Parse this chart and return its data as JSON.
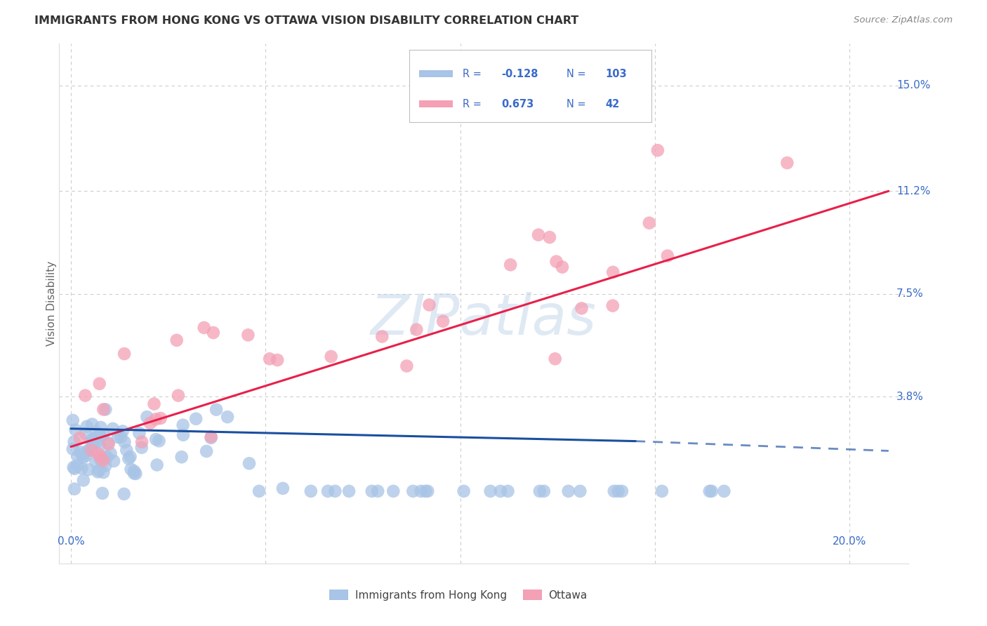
{
  "title": "IMMIGRANTS FROM HONG KONG VS OTTAWA VISION DISABILITY CORRELATION CHART",
  "source": "Source: ZipAtlas.com",
  "ylabel": "Vision Disability",
  "ytick_labels": [
    "15.0%",
    "11.2%",
    "7.5%",
    "3.8%"
  ],
  "ytick_values": [
    0.15,
    0.112,
    0.075,
    0.038
  ],
  "xtick_labels": [
    "0.0%",
    "20.0%"
  ],
  "xtick_values": [
    0.0,
    0.2
  ],
  "xlim": [
    -0.003,
    0.215
  ],
  "ylim": [
    -0.022,
    0.165
  ],
  "blue_R": "-0.128",
  "blue_N": "103",
  "pink_R": "0.673",
  "pink_N": "42",
  "blue_color": "#a8c4e6",
  "pink_color": "#f4a0b5",
  "blue_line_color": "#1a4fa0",
  "pink_line_color": "#e8204a",
  "legend_label_blue": "Immigrants from Hong Kong",
  "legend_label_pink": "Ottawa",
  "watermark": "ZIPatlas",
  "legend_text_color": "#3a6bc8",
  "axis_label_color": "#3a6bc8",
  "title_color": "#333333",
  "source_color": "#888888",
  "grid_color": "#cccccc",
  "ylabel_color": "#666666"
}
